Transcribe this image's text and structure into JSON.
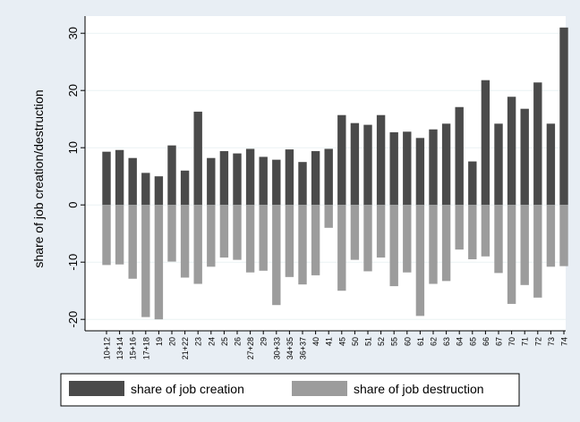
{
  "chart_data": {
    "type": "bar",
    "title": "",
    "xlabel": "",
    "ylabel": "share of job creation/destruction",
    "ylim": [
      -22,
      33
    ],
    "yticks": [
      -20,
      -10,
      0,
      10,
      20,
      30
    ],
    "ytick_labels": [
      "-20",
      "-10",
      "0",
      "10",
      "20",
      "30"
    ],
    "grid": true,
    "legend_position": "bottom",
    "categories": [
      "10+12",
      "13+14",
      "15+16",
      "17+18",
      "19",
      "20",
      "21+22",
      "23",
      "24",
      "25",
      "26",
      "27+28",
      "29",
      "30+33",
      "34+35",
      "36+37",
      "40",
      "41",
      "45",
      "50",
      "51",
      "52",
      "55",
      "60",
      "61",
      "62",
      "63",
      "64",
      "65",
      "66",
      "67",
      "70",
      "71",
      "72",
      "73",
      "74"
    ],
    "series": [
      {
        "name": "share of job creation",
        "color": "#4a4a4a",
        "values": [
          9.3,
          9.6,
          8.2,
          5.6,
          5.0,
          10.4,
          6.0,
          16.3,
          8.2,
          9.4,
          9.0,
          9.8,
          8.4,
          7.9,
          9.7,
          7.5,
          9.4,
          9.8,
          15.7,
          14.3,
          14.0,
          15.7,
          12.7,
          12.8,
          11.7,
          13.2,
          14.2,
          17.1,
          7.6,
          21.8,
          14.2,
          18.9,
          16.8,
          21.4,
          14.2,
          31.0
        ]
      },
      {
        "name": "share of job destruction",
        "color": "#9c9c9c",
        "values": [
          -10.5,
          -10.4,
          -12.9,
          -19.6,
          -20.0,
          -9.9,
          -12.7,
          -13.8,
          -10.8,
          -9.2,
          -9.6,
          -11.8,
          -11.5,
          -17.5,
          -12.6,
          -13.9,
          -12.3,
          -4.0,
          -15.0,
          -9.6,
          -11.6,
          -9.2,
          -14.2,
          -11.8,
          -19.4,
          -13.8,
          -13.3,
          -7.8,
          -9.5,
          -9.0,
          -11.9,
          -17.3,
          -14.0,
          -16.2,
          -10.8,
          -10.7
        ]
      }
    ]
  }
}
